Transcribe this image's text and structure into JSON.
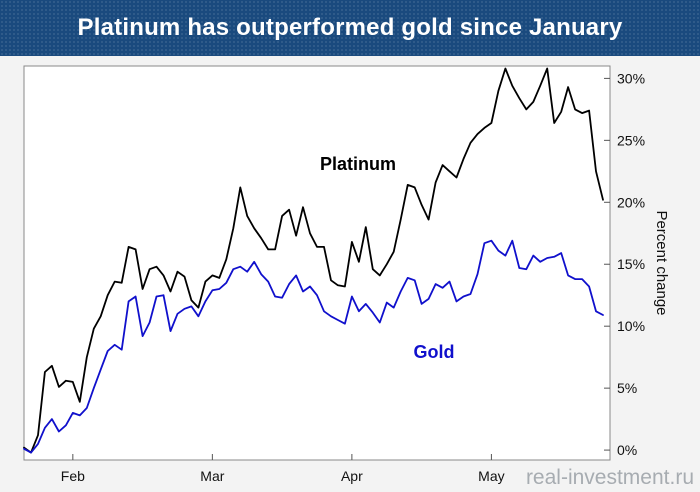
{
  "title": "Platinum has outperformed gold since January",
  "watermark": "real-investment.ru",
  "colors": {
    "title_bar": "#1a4a7e",
    "platinum": "#000000",
    "gold": "#1010cc"
  },
  "chart_data": {
    "type": "line",
    "title": "Platinum has outperformed gold since January",
    "xlabel": "",
    "ylabel": "Percent change",
    "x_tick_labels": [
      "Feb",
      "Mar",
      "Apr",
      "May"
    ],
    "x_tick_positions": [
      7,
      27,
      47,
      67
    ],
    "y_ticks": [
      0,
      5,
      10,
      15,
      20,
      25,
      30
    ],
    "y_tick_labels": [
      "0%",
      "5%",
      "10%",
      "15%",
      "20%",
      "25%",
      "30%"
    ],
    "ylim": [
      -0.8,
      31
    ],
    "xlim": [
      0,
      84
    ],
    "grid": false,
    "y_axis_side": "right",
    "series": [
      {
        "name": "Platinum",
        "color": "#000000",
        "label_text": "Platinum",
        "x": [
          0,
          1,
          2,
          3,
          4,
          5,
          6,
          7,
          8,
          9,
          10,
          11,
          12,
          13,
          14,
          15,
          16,
          17,
          18,
          19,
          20,
          21,
          22,
          23,
          24,
          25,
          26,
          27,
          28,
          29,
          30,
          31,
          32,
          33,
          34,
          35,
          36,
          37,
          38,
          39,
          40,
          41,
          42,
          43,
          44,
          45,
          46,
          47,
          48,
          49,
          50,
          51,
          52,
          53,
          54,
          55,
          56,
          57,
          58,
          59,
          60,
          61,
          62,
          63,
          64,
          65,
          66,
          67,
          68,
          69,
          70,
          71,
          72,
          73,
          74,
          75,
          76,
          77,
          78,
          79,
          80,
          81,
          82,
          83
        ],
        "values": [
          0.2,
          -0.2,
          1.2,
          6.3,
          6.8,
          5.1,
          5.6,
          5.5,
          3.9,
          7.5,
          9.8,
          10.8,
          12.5,
          13.6,
          13.5,
          16.4,
          16.2,
          13.0,
          14.6,
          14.8,
          14.1,
          12.8,
          14.4,
          14.0,
          12.1,
          11.5,
          13.6,
          14.1,
          13.9,
          15.4,
          17.9,
          21.2,
          18.9,
          17.9,
          17.1,
          16.2,
          16.2,
          18.9,
          19.4,
          17.3,
          19.6,
          17.5,
          16.4,
          16.4,
          13.7,
          13.3,
          13.2,
          16.8,
          15.2,
          18.0,
          14.6,
          14.1,
          15.0,
          16.0,
          18.6,
          21.4,
          21.2,
          19.8,
          18.6,
          21.6,
          23.0,
          22.5,
          22.0,
          23.5,
          24.8,
          25.5,
          26.0,
          26.4,
          29.0,
          30.8,
          29.4,
          28.4,
          27.5,
          28.1,
          29.4,
          30.8,
          26.4,
          27.3,
          29.3,
          27.5,
          27.2,
          27.4,
          22.5,
          20.2
        ]
      },
      {
        "name": "Gold",
        "color": "#1010cc",
        "label_text": "Gold",
        "x": [
          0,
          1,
          2,
          3,
          4,
          5,
          6,
          7,
          8,
          9,
          10,
          11,
          12,
          13,
          14,
          15,
          16,
          17,
          18,
          19,
          20,
          21,
          22,
          23,
          24,
          25,
          26,
          27,
          28,
          29,
          30,
          31,
          32,
          33,
          34,
          35,
          36,
          37,
          38,
          39,
          40,
          41,
          42,
          43,
          44,
          45,
          46,
          47,
          48,
          49,
          50,
          51,
          52,
          53,
          54,
          55,
          56,
          57,
          58,
          59,
          60,
          61,
          62,
          63,
          64,
          65,
          66,
          67,
          68,
          69,
          70,
          71,
          72,
          73,
          74,
          75,
          76,
          77,
          78,
          79,
          80,
          81,
          82,
          83
        ],
        "values": [
          0.1,
          -0.2,
          0.5,
          1.8,
          2.5,
          1.5,
          2.0,
          3.0,
          2.8,
          3.4,
          5.0,
          6.5,
          8.0,
          8.5,
          8.1,
          12.0,
          12.4,
          9.2,
          10.3,
          12.4,
          12.5,
          9.6,
          11.0,
          11.4,
          11.6,
          10.8,
          12.0,
          12.9,
          13.0,
          13.5,
          14.6,
          14.8,
          14.4,
          15.2,
          14.2,
          13.6,
          12.4,
          12.3,
          13.4,
          14.1,
          12.8,
          13.2,
          12.5,
          11.2,
          10.8,
          10.5,
          10.2,
          12.4,
          11.2,
          11.8,
          11.1,
          10.3,
          11.9,
          11.5,
          12.8,
          13.9,
          13.7,
          11.8,
          12.2,
          13.4,
          13.1,
          13.6,
          12.0,
          12.4,
          12.6,
          14.2,
          16.7,
          16.9,
          16.1,
          15.7,
          16.9,
          14.7,
          14.6,
          15.7,
          15.2,
          15.5,
          15.6,
          15.9,
          14.1,
          13.8,
          13.8,
          13.2,
          11.2,
          10.9
        ]
      }
    ]
  }
}
